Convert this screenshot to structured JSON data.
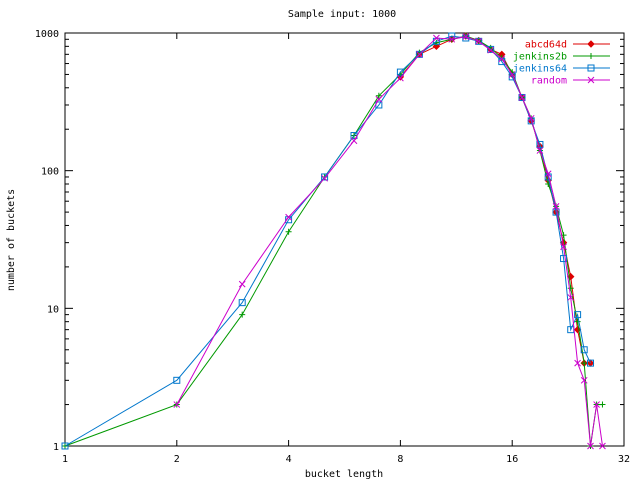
{
  "chart_data": {
    "type": "line",
    "title": "Sample input: 1000",
    "xlabel": "bucket length",
    "ylabel": "number of buckets",
    "xscale": "log2",
    "yscale": "log10",
    "xlim": [
      1,
      32
    ],
    "ylim": [
      1,
      1000
    ],
    "xticks": [
      1,
      2,
      4,
      8,
      16,
      32
    ],
    "xtick_labels": [
      "1",
      "2",
      "4",
      "8",
      "16",
      "32"
    ],
    "yticks": [
      1,
      10,
      100,
      1000
    ],
    "ytick_labels": [
      "1",
      "10",
      "100",
      "1000"
    ],
    "grid": false,
    "legend_position": "top-right",
    "series": [
      {
        "name": "abcd64d",
        "color": "#dd0000",
        "marker": "diamond",
        "x": [
          8,
          9,
          10,
          11,
          12,
          13,
          14,
          15,
          16,
          17,
          18,
          19,
          20,
          21,
          22,
          23,
          24,
          25,
          26
        ],
        "y": [
          480,
          700,
          800,
          900,
          950,
          880,
          760,
          700,
          500,
          340,
          230,
          150,
          85,
          50,
          30,
          17,
          7,
          4,
          4
        ]
      },
      {
        "name": "jenkins2b",
        "color": "#009900",
        "marker": "plus",
        "x": [
          1,
          2,
          3,
          4,
          5,
          6,
          7,
          8,
          9,
          10,
          11,
          12,
          13,
          14,
          15,
          16,
          17,
          18,
          19,
          20,
          21,
          22,
          23,
          24,
          25,
          26,
          27,
          28
        ],
        "y": [
          1,
          2,
          9,
          36,
          90,
          180,
          350,
          500,
          720,
          850,
          900,
          950,
          880,
          780,
          660,
          520,
          340,
          240,
          140,
          80,
          55,
          34,
          14,
          8,
          4,
          1,
          2,
          2
        ]
      },
      {
        "name": "jenkins64",
        "color": "#0077cc",
        "marker": "square",
        "x": [
          1,
          2,
          3,
          4,
          5,
          6,
          7,
          8,
          9,
          10,
          11,
          12,
          13,
          14,
          15,
          16,
          17,
          18,
          19,
          20,
          21,
          22,
          23,
          24,
          25,
          26
        ],
        "y": [
          1,
          3,
          11,
          44,
          90,
          180,
          300,
          520,
          700,
          870,
          950,
          920,
          870,
          760,
          620,
          480,
          340,
          230,
          155,
          90,
          50,
          23,
          7,
          9,
          5,
          4
        ]
      },
      {
        "name": "random",
        "color": "#cc00cc",
        "marker": "x",
        "x": [
          2,
          3,
          4,
          5,
          6,
          7,
          8,
          9,
          10,
          11,
          12,
          13,
          14,
          15,
          16,
          17,
          18,
          19,
          20,
          21,
          22,
          23,
          24,
          25,
          26,
          27,
          28
        ],
        "y": [
          2,
          15,
          46,
          88,
          165,
          330,
          470,
          700,
          920,
          900,
          940,
          870,
          750,
          650,
          500,
          340,
          240,
          140,
          95,
          55,
          28,
          12,
          4,
          3,
          1,
          2,
          1
        ]
      }
    ]
  }
}
